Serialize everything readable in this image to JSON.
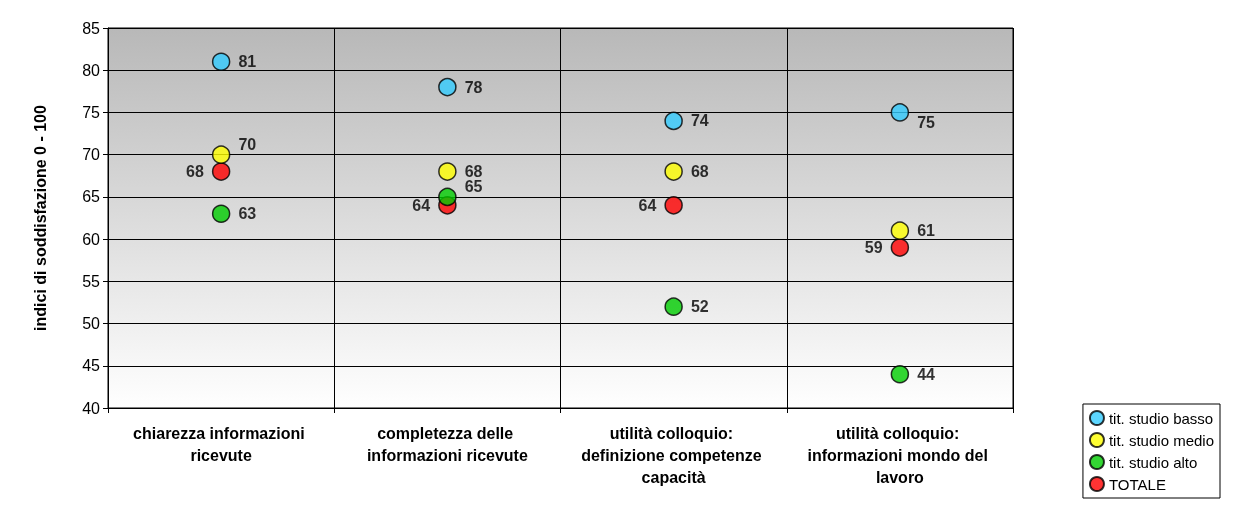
{
  "chart_data": {
    "type": "scatter",
    "ylabel": "indici di soddisfazione 0 - 100",
    "categories": [
      "chiarezza informazioni ricevute",
      "completezza delle informazioni ricevute",
      "utilità colloquio: definizione competenze capacità",
      "utilità colloquio: informazioni mondo del lavoro"
    ],
    "series": [
      {
        "name": "tit. studio basso",
        "color": "#33ccff",
        "values": [
          81,
          78,
          74,
          75
        ]
      },
      {
        "name": "tit. studio medio",
        "color": "#ffff00",
        "values": [
          70,
          68,
          68,
          61
        ]
      },
      {
        "name": "tit. studio alto",
        "color": "#00cc00",
        "values": [
          63,
          65,
          52,
          44
        ]
      },
      {
        "name": "TOTALE",
        "color": "#ff0000",
        "values": [
          68,
          64,
          64,
          59
        ]
      }
    ],
    "ylim": [
      40,
      85
    ],
    "yticks": [
      40,
      45,
      50,
      55,
      60,
      65,
      70,
      75,
      80,
      85
    ],
    "grid": true,
    "legend": "bottom right",
    "marker": "circle",
    "data_labels": true
  }
}
